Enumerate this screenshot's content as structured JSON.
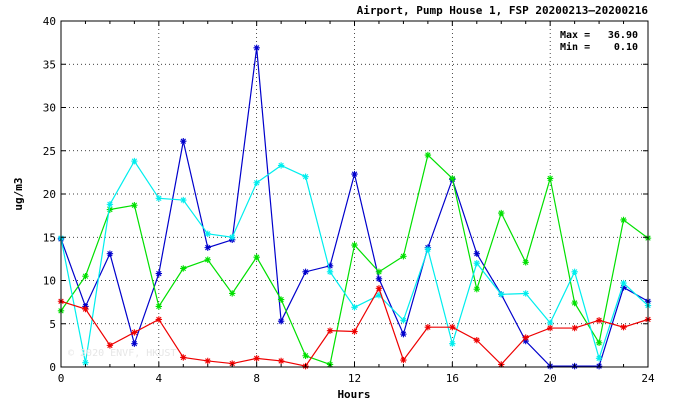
{
  "chart_data": {
    "type": "line",
    "title": "Airport, Pump House 1, FSP 20200213–20200216",
    "xlabel": "Hours",
    "ylabel": "ug/m3",
    "xlim": [
      0,
      24
    ],
    "ylim": [
      0,
      40
    ],
    "x_ticks": [
      0,
      4,
      8,
      12,
      16,
      20,
      24
    ],
    "y_ticks": [
      0,
      5,
      10,
      15,
      20,
      25,
      30,
      35,
      40
    ],
    "grid": true,
    "stats": {
      "max_label": "Max =",
      "max_value": "36.90",
      "min_label": "Min =",
      "min_value": "0.10"
    },
    "watermark": "© 2020 ENVF, HKUST",
    "x": [
      0,
      1,
      2,
      3,
      4,
      5,
      6,
      7,
      8,
      9,
      10,
      11,
      12,
      13,
      14,
      15,
      16,
      17,
      18,
      19,
      20,
      21,
      22,
      23,
      24
    ],
    "series": [
      {
        "color": "#0000cc",
        "values": [
          14.8,
          7.0,
          13.1,
          2.7,
          10.8,
          26.1,
          13.8,
          14.7,
          36.9,
          5.3,
          11.0,
          11.7,
          22.3,
          10.2,
          3.8,
          13.8,
          21.7,
          13.1,
          8.4,
          3.0,
          0.1,
          0.1,
          0.1,
          9.2,
          7.6
        ]
      },
      {
        "color": "#00e000",
        "values": [
          6.5,
          10.5,
          18.2,
          18.7,
          7.0,
          11.4,
          12.4,
          8.5,
          12.7,
          7.8,
          1.3,
          0.3,
          14.1,
          11.0,
          12.8,
          24.5,
          21.8,
          9.0,
          17.8,
          12.1,
          21.8,
          7.4,
          2.8,
          17.0,
          14.9
        ]
      },
      {
        "color": "#00eeee",
        "values": [
          14.9,
          0.5,
          18.8,
          23.8,
          19.5,
          19.3,
          15.4,
          15.0,
          21.3,
          23.3,
          22.0,
          11.0,
          6.9,
          8.3,
          5.4,
          13.6,
          2.7,
          12.0,
          8.4,
          8.5,
          5.1,
          11.0,
          1.0,
          9.7,
          7.1
        ]
      },
      {
        "color": "#ee0000",
        "values": [
          7.6,
          6.7,
          2.5,
          4.0,
          5.5,
          1.1,
          0.7,
          0.4,
          1.0,
          0.7,
          0.1,
          4.2,
          4.1,
          9.1,
          0.8,
          4.6,
          4.6,
          3.1,
          0.3,
          3.4,
          4.5,
          4.5,
          5.4,
          4.6,
          5.5
        ]
      }
    ]
  }
}
